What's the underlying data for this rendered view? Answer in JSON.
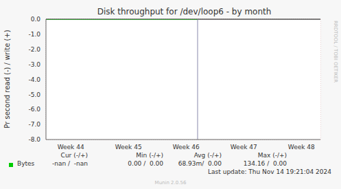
{
  "chart_data": {
    "type": "line",
    "title": "Disk throughput for /dev/loop6 - by month",
    "y_label": "Pr second read (-) / write (+)",
    "x": [
      43.57,
      46.2
    ],
    "series": [
      {
        "name": "Bytes",
        "color": "#00cc00",
        "values": [
          0,
          0
        ]
      }
    ],
    "xlim": [
      43.57,
      48.33
    ],
    "xticks": [
      {
        "value": 44,
        "label": "Week 44"
      },
      {
        "value": 45,
        "label": "Week 45"
      },
      {
        "value": 46,
        "label": "Week 46"
      },
      {
        "value": 47,
        "label": "Week 47"
      },
      {
        "value": 48,
        "label": "Week 48"
      }
    ],
    "ylim": [
      -8,
      0
    ],
    "yticks": [
      {
        "value": 0,
        "label": "0.0"
      },
      {
        "value": -1,
        "label": "-1.0"
      },
      {
        "value": -2,
        "label": "-2.0"
      },
      {
        "value": -3,
        "label": "-3.0"
      },
      {
        "value": -4,
        "label": "-4.0"
      },
      {
        "value": -5,
        "label": "-5.0"
      },
      {
        "value": -6,
        "label": "-6.0"
      },
      {
        "value": -7,
        "label": "-7.0"
      },
      {
        "value": -8,
        "label": "-8.0"
      }
    ],
    "grid": true,
    "vlines": [
      46.2
    ],
    "legend_table": {
      "headers": [
        "Cur (-/+)",
        "Min (-/+)",
        "Avg (-/+)",
        "Max (-/+)"
      ],
      "rows": [
        {
          "name": "Bytes",
          "color": "#00cc00",
          "cells": [
            "-nan /  -nan",
            "0.00 /  0.00",
            "68.93m/  0.00",
            "134.16 /  0.00"
          ]
        }
      ]
    },
    "last_update": "Last update: Thu Nov 14 19:21:04 2024",
    "footer": "Munin 2.0.56",
    "side_text": "RRDTOOL / TOBI OETIKER"
  }
}
